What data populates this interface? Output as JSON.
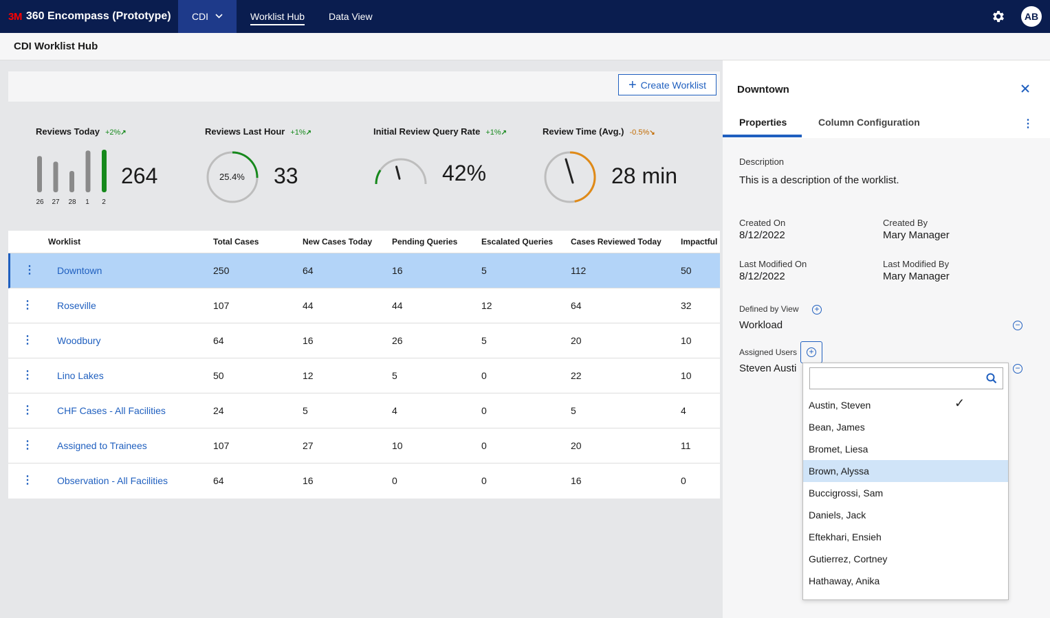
{
  "topbar": {
    "logo": "3M",
    "app_title": "360 Encompass (Prototype)",
    "module_menu": "CDI",
    "nav": [
      "Worklist Hub",
      "Data View"
    ],
    "avatar_initials": "AB"
  },
  "page_title": "CDI Worklist Hub",
  "create_button": "Create Worklist",
  "metrics": {
    "reviews_today": {
      "title": "Reviews Today",
      "trend": "+2%",
      "value": "264",
      "bars": [
        {
          "label": "26",
          "value": 0.85
        },
        {
          "label": "27",
          "value": 0.72
        },
        {
          "label": "28",
          "value": 0.5
        },
        {
          "label": "1",
          "value": 0.98
        },
        {
          "label": "2",
          "value": 1.0
        }
      ]
    },
    "reviews_last_hour": {
      "title": "Reviews Last Hour",
      "trend": "+1%",
      "gauge_label": "25.4%",
      "gauge_fraction": 0.254,
      "value": "33"
    },
    "query_rate": {
      "title": "Initial Review Query Rate",
      "trend": "+1%",
      "value": "42%",
      "gauge_fraction": 0.42
    },
    "review_time": {
      "title": "Review Time (Avg.)",
      "trend": "-0.5%",
      "value": "28 min",
      "gauge_fraction": 0.47
    }
  },
  "table": {
    "columns": [
      "Worklist",
      "Total Cases",
      "New Cases Today",
      "Pending Queries",
      "Escalated Queries",
      "Cases Reviewed Today",
      "Impactful"
    ],
    "rows": [
      {
        "name": "Downtown",
        "cells": [
          "250",
          "64",
          "16",
          "5",
          "112",
          "50"
        ]
      },
      {
        "name": "Roseville",
        "cells": [
          "107",
          "44",
          "44",
          "12",
          "64",
          "32"
        ]
      },
      {
        "name": "Woodbury",
        "cells": [
          "64",
          "16",
          "26",
          "5",
          "20",
          "10"
        ]
      },
      {
        "name": "Lino Lakes",
        "cells": [
          "50",
          "12",
          "5",
          "0",
          "22",
          "10"
        ]
      },
      {
        "name": "CHF Cases - All Facilities",
        "cells": [
          "24",
          "5",
          "4",
          "0",
          "5",
          "4"
        ]
      },
      {
        "name": "Assigned to Trainees",
        "cells": [
          "107",
          "27",
          "10",
          "0",
          "20",
          "11"
        ]
      },
      {
        "name": "Observation - All Facilities",
        "cells": [
          "64",
          "16",
          "0",
          "0",
          "16",
          "0"
        ]
      }
    ]
  },
  "panel": {
    "title": "Downtown",
    "tabs": [
      "Properties",
      "Column Configuration"
    ],
    "description_label": "Description",
    "description": "This is a description of the worklist.",
    "created_on_label": "Created On",
    "created_on": "8/12/2022",
    "created_by_label": "Created By",
    "created_by": "Mary Manager",
    "modified_on_label": "Last Modified On",
    "modified_on": "8/12/2022",
    "modified_by_label": "Last Modified By",
    "modified_by": "Mary Manager",
    "defined_by_label": "Defined by View",
    "defined_by": "Workload",
    "assigned_label": "Assigned Users",
    "assigned_value": "Steven Austi"
  },
  "dropdown": {
    "search_value": "",
    "items": [
      "Austin, Steven",
      "Bean, James",
      "Bromet, Liesa",
      "Brown, Alyssa",
      "Buccigrossi, Sam",
      "Daniels, Jack",
      "Eftekhari, Ensieh",
      "Gutierrez, Cortney",
      "Hathaway, Anika"
    ],
    "checked_item": "Austin, Steven",
    "highlighted_item": "Brown, Alyssa"
  },
  "colors": {
    "nav_bg": "#0a1d4f",
    "accent_blue": "#1f5fbf",
    "trend_green": "#16891c",
    "trend_orange": "#c26b00",
    "selected_row": "#b3d4f8"
  }
}
